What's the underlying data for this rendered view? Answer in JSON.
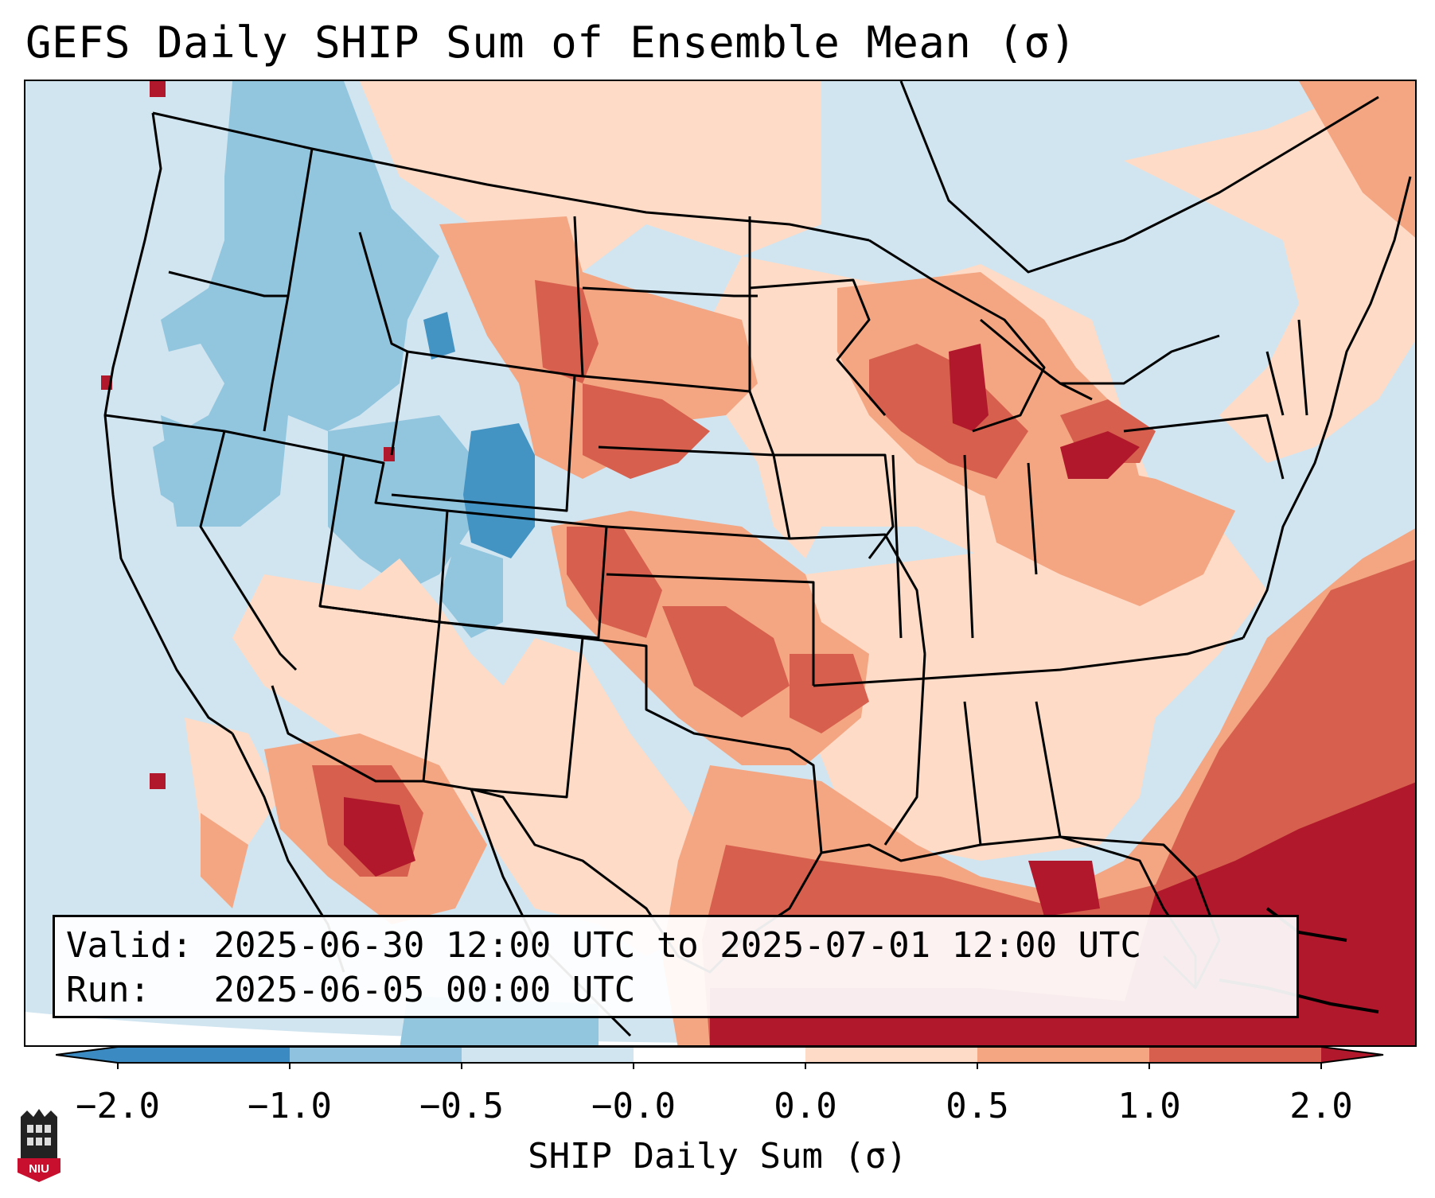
{
  "title": "GEFS Daily SHIP Sum of Ensemble Mean (σ)",
  "info": {
    "valid_label": "Valid:",
    "valid_value": "2025-06-30 12:00 UTC to 2025-07-01 12:00 UTC",
    "run_label": "Run:",
    "run_value": "2025-06-05 00:00 UTC"
  },
  "colorbar": {
    "label": "SHIP Daily Sum (σ)",
    "ticks": [
      "−2.0",
      "−1.0",
      "−0.5",
      "−0.0",
      "0.0",
      "0.5",
      "1.0",
      "2.0"
    ],
    "colors": [
      "#3b8bc2",
      "#8fc2de",
      "#d1e5f0",
      "#ffffff",
      "#fddbc7",
      "#f4a582",
      "#d6604d",
      "#b2182b"
    ]
  },
  "logo": {
    "text": "NIU",
    "color": "#c8102e"
  },
  "map": {
    "region": "Contiguous United States",
    "background_anomaly_color": "#d1e5f0"
  }
}
